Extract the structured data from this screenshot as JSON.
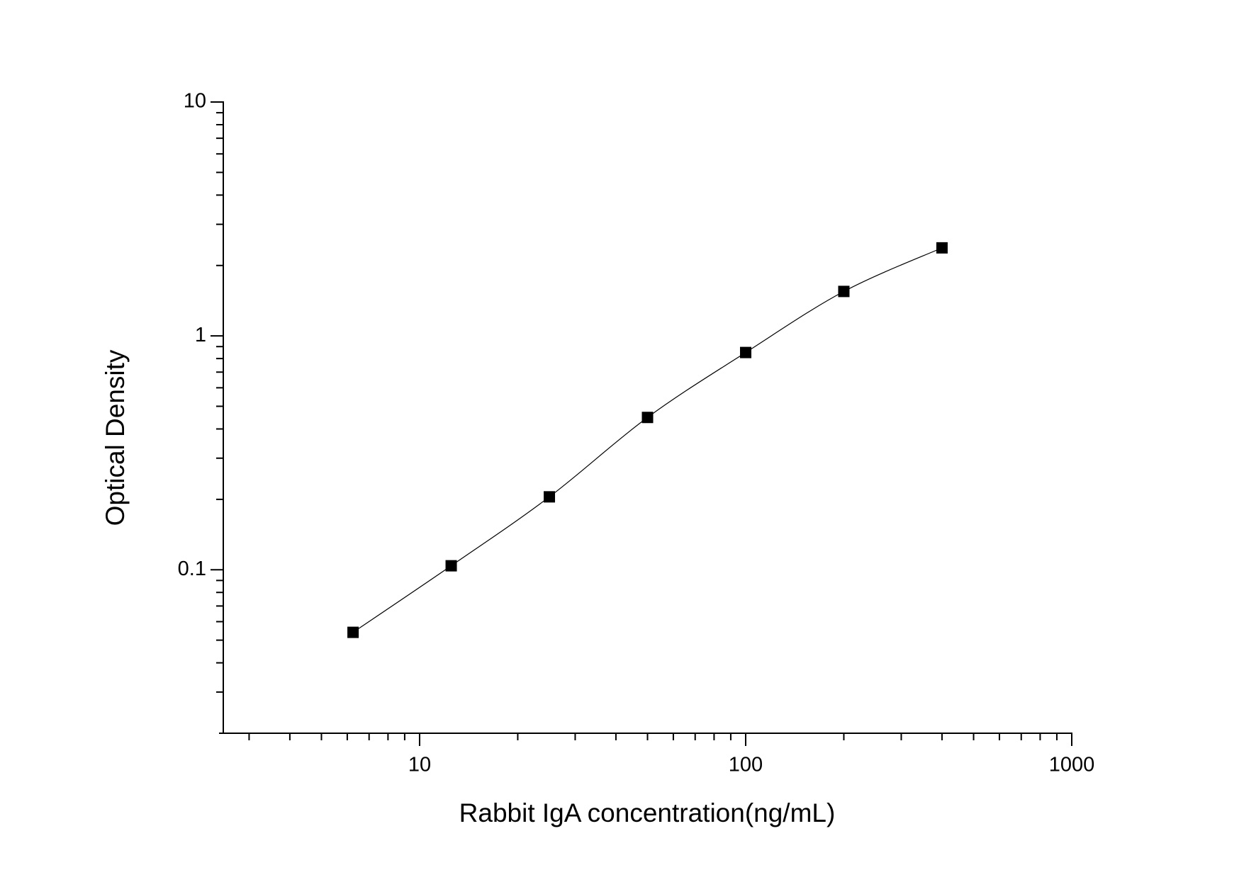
{
  "chart_data": {
    "type": "scatter",
    "x_label": "Rabbit IgA concentration(ng/mL)",
    "y_label": "Optical Density",
    "x": [
      6.25,
      12.5,
      25,
      50,
      100,
      200,
      400
    ],
    "series": [
      {
        "color": "#000000",
        "values": [
          0.054,
          0.104,
          0.205,
          0.448,
          0.849,
          1.549,
          2.379
        ]
      }
    ],
    "xlim": [
      2.5,
      1000
    ],
    "ylim": [
      0.02,
      10
    ],
    "xticks": [
      10,
      100,
      1000
    ],
    "yticks": [
      0.1,
      1,
      10
    ],
    "xscale": "log",
    "yscale": "log",
    "fit_curve": true
  }
}
